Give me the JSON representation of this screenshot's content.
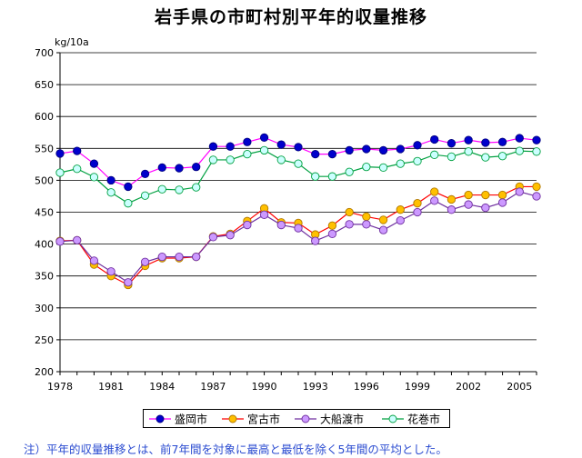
{
  "title": "岩手県の市町村別平年的収量推移",
  "footnote": "注）平年的収量推移とは、前7年間を対象に最高と最低を除く5年間の平均とした。",
  "chart_data": {
    "type": "line",
    "title": "岩手県の市町村別平年的収量推移",
    "ylabel": "kg/10a",
    "xlabel": "",
    "ylim": [
      200,
      700
    ],
    "yticks": [
      200,
      250,
      300,
      350,
      400,
      450,
      500,
      550,
      600,
      650,
      700
    ],
    "xlim": [
      1978,
      2006
    ],
    "xticks": [
      1978,
      1981,
      1984,
      1987,
      1990,
      1993,
      1996,
      1999,
      2002,
      2005
    ],
    "x": [
      1978,
      1979,
      1980,
      1981,
      1982,
      1983,
      1984,
      1985,
      1986,
      1987,
      1988,
      1989,
      1990,
      1991,
      1992,
      1993,
      1994,
      1995,
      1996,
      1997,
      1998,
      1999,
      2000,
      2001,
      2002,
      2003,
      2004,
      2005,
      2006
    ],
    "legend_position": "bottom",
    "series": [
      {
        "name": "盛岡市",
        "line_color": "#ff00ff",
        "marker_fill": "#0000cc",
        "marker_stroke": "#000080",
        "values": [
          542,
          546,
          526,
          500,
          490,
          510,
          520,
          519,
          521,
          553,
          553,
          560,
          567,
          556,
          552,
          541,
          541,
          547,
          549,
          547,
          549,
          555,
          564,
          558,
          563,
          559,
          560,
          566,
          563
        ]
      },
      {
        "name": "宮古市",
        "line_color": "#ff0000",
        "marker_fill": "#ffc000",
        "marker_stroke": "#b07800",
        "values": [
          405,
          406,
          368,
          350,
          336,
          366,
          378,
          378,
          380,
          412,
          416,
          436,
          456,
          434,
          433,
          415,
          429,
          450,
          443,
          438,
          454,
          464,
          482,
          470,
          477,
          477,
          477,
          490,
          490
        ]
      },
      {
        "name": "大船渡市",
        "line_color": "#7030a0",
        "marker_fill": "#cc99ff",
        "marker_stroke": "#7030a0",
        "values": [
          404,
          406,
          374,
          357,
          340,
          372,
          380,
          380,
          380,
          411,
          414,
          430,
          446,
          430,
          425,
          405,
          416,
          431,
          431,
          422,
          437,
          450,
          468,
          454,
          462,
          457,
          465,
          482,
          475
        ]
      },
      {
        "name": "花巻市",
        "line_color": "#00a040",
        "marker_fill": "#ccffff",
        "marker_stroke": "#00a040",
        "values": [
          512,
          518,
          505,
          481,
          464,
          476,
          486,
          485,
          489,
          532,
          532,
          541,
          547,
          532,
          526,
          506,
          506,
          513,
          521,
          520,
          526,
          530,
          540,
          537,
          545,
          536,
          538,
          546,
          545
        ]
      }
    ]
  }
}
